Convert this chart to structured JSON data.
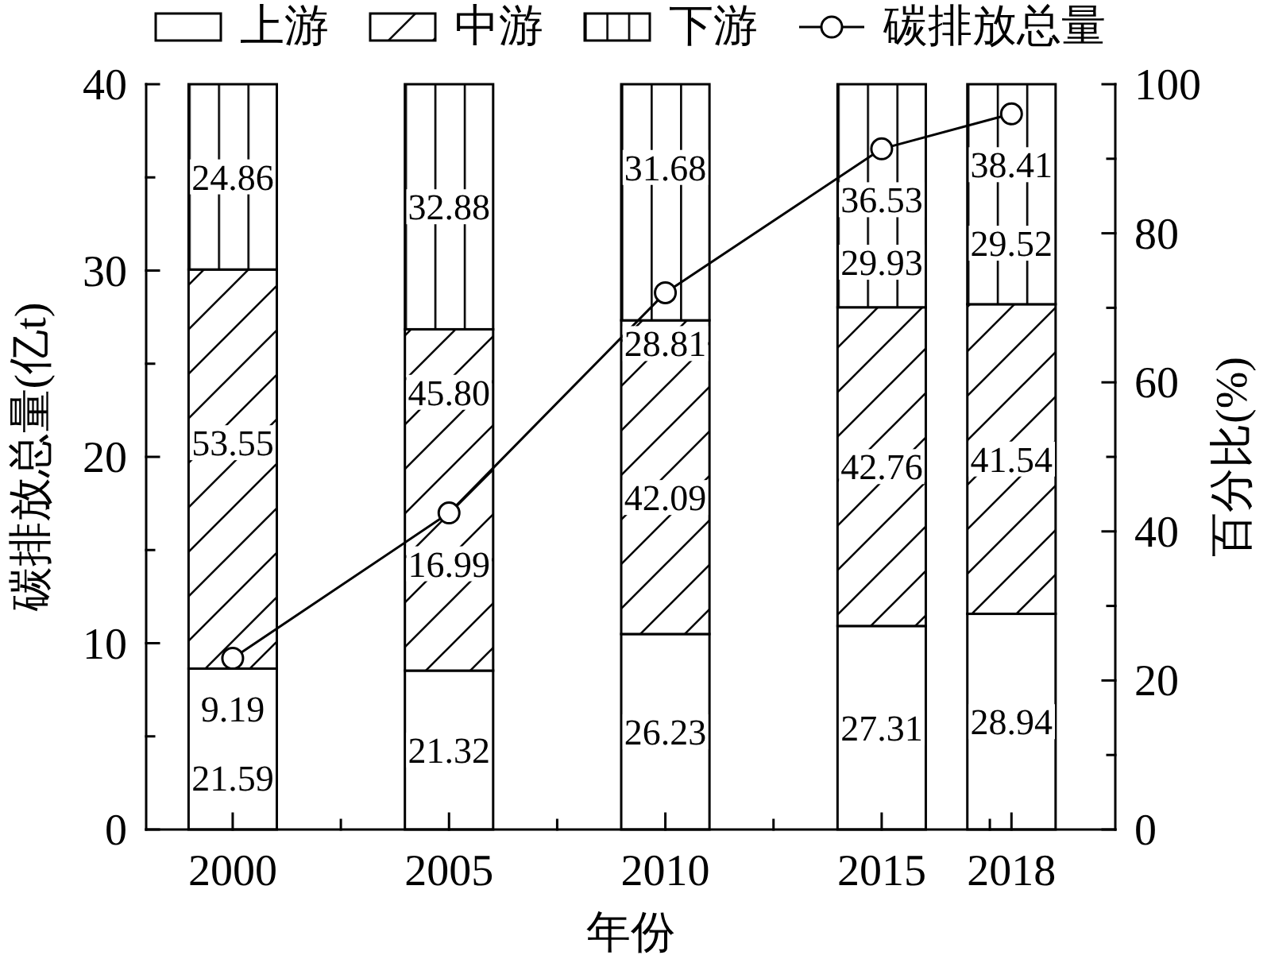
{
  "chart_data": {
    "type": "bar",
    "stacked": true,
    "legend": "top",
    "xlabel": "年份",
    "ylabel": "碳排放总量(亿t)",
    "y2label": "百分比(%)",
    "x": [
      2000,
      2005,
      2010,
      2015,
      2018
    ],
    "series": [
      {
        "name": "上游",
        "color": "#ffffff",
        "axis": "y2",
        "values": [
          21.59,
          21.32,
          26.23,
          27.31,
          28.94
        ],
        "value_labels": [
          "21.59",
          "21.32",
          "26.23",
          "27.31",
          "28.94"
        ]
      },
      {
        "name": "中游",
        "color": "#000000",
        "axis": "y2",
        "values": [
          53.55,
          45.8,
          42.09,
          42.76,
          41.54
        ],
        "value_labels": [
          "53.55",
          "45.80",
          "42.09",
          "42.76",
          "41.54"
        ]
      },
      {
        "name": "下游",
        "color": "#000000",
        "axis": "y2",
        "values": [
          24.86,
          32.88,
          31.68,
          29.93,
          29.52
        ],
        "value_labels": [
          "24.86",
          "32.88",
          "31.68",
          "29.93",
          "29.52"
        ]
      },
      {
        "name": "碳排放总量",
        "type": "line",
        "color": "#000000",
        "marker": "circle",
        "values": [
          9.19,
          16.99,
          28.81,
          36.53,
          38.41
        ],
        "value_labels": [
          "9.19",
          "16.99",
          "28.81",
          "36.53",
          "38.41"
        ]
      }
    ],
    "xlim": [
      1998,
      2020.4
    ],
    "xticks": [
      2000,
      {
        "value": 2002.5,
        "label": null
      },
      2005,
      {
        "value": 2007.5,
        "label": null
      },
      2010,
      {
        "value": 2012.5,
        "label": null
      },
      2015,
      {
        "value": 2017.5,
        "label": null
      },
      2018
    ],
    "ylim": [
      0,
      40
    ],
    "yticks": [
      0,
      {
        "value": 5,
        "label": null
      },
      10,
      {
        "value": 15,
        "label": null
      },
      20,
      {
        "value": 25,
        "label": null
      },
      30,
      {
        "value": 35,
        "label": null
      },
      40
    ],
    "y2lim": [
      0,
      100
    ],
    "y2ticks": [
      0,
      {
        "value": 10,
        "label": null
      },
      20,
      {
        "value": 30,
        "label": null
      },
      40,
      {
        "value": 50,
        "label": null
      },
      60,
      {
        "value": 70,
        "label": null
      },
      80,
      {
        "value": 90,
        "label": null
      },
      100
    ]
  }
}
